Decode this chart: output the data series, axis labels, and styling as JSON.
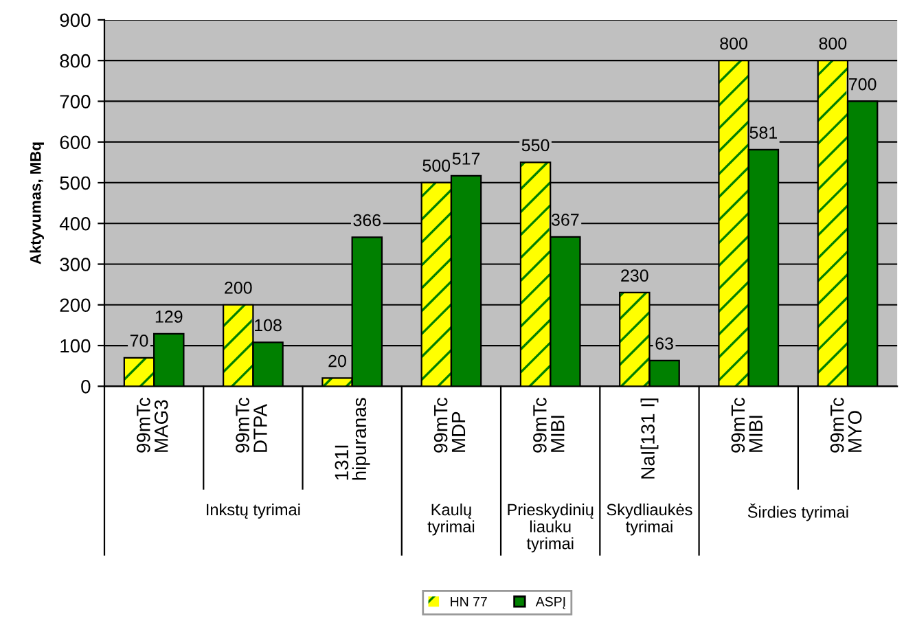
{
  "chart_data": {
    "type": "bar",
    "ylabel": "Aktyvumas, MBq",
    "categories": [
      "99mTc\nMAG3",
      "99mTc\nDTPA",
      "131I\nhipuranas",
      "99mTc\nMDP",
      "99mTc\nMIBI",
      "NaI[131 I]",
      "99mTc\nMIBI",
      "99mTc\nMYO"
    ],
    "series": [
      {
        "name": "HN 77",
        "color": "#ffff00",
        "values": [
          70,
          200,
          20,
          500,
          550,
          230,
          800,
          800
        ]
      },
      {
        "name": "ASPĮ",
        "color": "#008000",
        "values": [
          129,
          108,
          366,
          517,
          367,
          63,
          581,
          700
        ]
      }
    ],
    "annotations": [
      "Inkstų tyrimai",
      "Kaulų\ntyrimai",
      "Prieskydinių\nliauku\ntyrimai",
      "Skydliaukės\ntyrimai",
      "Širdies tyrimai"
    ],
    "ylim": [
      0,
      900
    ],
    "yticks": [
      0,
      100,
      200,
      300,
      400,
      500,
      600,
      700,
      800,
      900
    ],
    "grid": "y",
    "legend": "bottom",
    "data_labels": true
  }
}
